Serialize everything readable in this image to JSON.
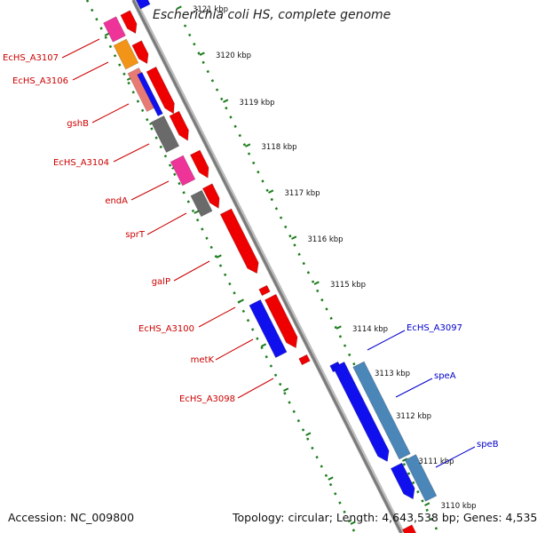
{
  "title": "Escherichia coli HS, complete genome",
  "footer": {
    "accession": "Accession: NC_009800",
    "topology": "Topology: circular; Length: 4,643,538 bp; Genes: 4,535"
  },
  "colors": {
    "forward_strand": "#ee0000",
    "reverse_strand": "#1010ee",
    "reverse_strand_alt": "#4a86b8",
    "pink_gene": "#ee3399",
    "orange_gene": "#f29418",
    "salmon_gene": "#e77b74",
    "grey_gene": "#6a6a6a",
    "axis": "#8c8c8c",
    "tick": "#1d7d1d",
    "label_red": "#cc0000",
    "label_blue": "#0000cc"
  },
  "ruler": [
    {
      "label": "3121 kbp"
    },
    {
      "label": "3120 kbp"
    },
    {
      "label": "3119 kbp"
    },
    {
      "label": "3118 kbp"
    },
    {
      "label": "3117 kbp"
    },
    {
      "label": "3116 kbp"
    },
    {
      "label": "3115 kbp"
    },
    {
      "label": "3114 kbp"
    },
    {
      "label": "3113 kbp"
    },
    {
      "label": "3112 kbp"
    },
    {
      "label": "3111 kbp"
    },
    {
      "label": "3110 kbp"
    }
  ],
  "genes_left": [
    {
      "label": "EcHS_A3107"
    },
    {
      "label": "EcHS_A3106"
    },
    {
      "label": "gshB"
    },
    {
      "label": "EcHS_A3104"
    },
    {
      "label": "endA"
    },
    {
      "label": "sprT"
    },
    {
      "label": "galP"
    },
    {
      "label": "EcHS_A3100"
    },
    {
      "label": "metK"
    },
    {
      "label": "EcHS_A3098"
    }
  ],
  "genes_right": [
    {
      "label": "EcHS_A3097"
    },
    {
      "label": "speA"
    },
    {
      "label": "speB"
    }
  ]
}
